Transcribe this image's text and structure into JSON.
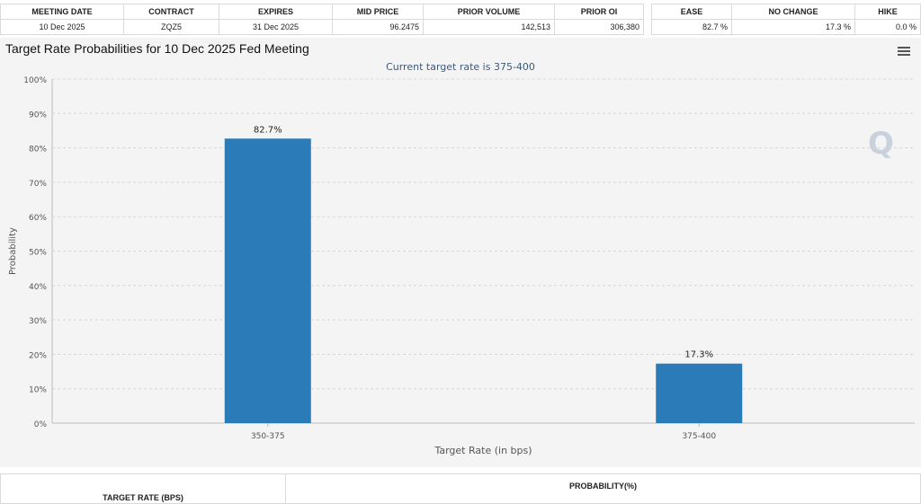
{
  "summary": {
    "headers": [
      "MEETING DATE",
      "CONTRACT",
      "EXPIRES",
      "MID PRICE",
      "PRIOR VOLUME",
      "PRIOR OI"
    ],
    "row": [
      "10 Dec 2025",
      "ZQZ5",
      "31 Dec 2025",
      "96.2475",
      "142,513",
      "306,380"
    ]
  },
  "outlook": {
    "headers": [
      "EASE",
      "NO CHANGE",
      "HIKE"
    ],
    "row": [
      "82.7 %",
      "17.3 %",
      "0.0 %"
    ]
  },
  "chart": {
    "title": "Target Rate Probabilities for 10 Dec 2025 Fed Meeting",
    "subtitle": "Current target rate is 375-400",
    "bar_color": "#2b7bb9"
  },
  "chart_data": {
    "type": "bar",
    "title": "Target Rate Probabilities for 10 Dec 2025 Fed Meeting",
    "subtitle": "Current target rate is 375-400",
    "categories": [
      "350-375",
      "375-400"
    ],
    "values": [
      82.7,
      17.3
    ],
    "data_labels": [
      "82.7%",
      "17.3%"
    ],
    "xlabel": "Target Rate (in bps)",
    "ylabel": "Probability",
    "ylim": [
      0,
      100
    ],
    "yticks": [
      "0%",
      "10%",
      "20%",
      "30%",
      "40%",
      "50%",
      "60%",
      "70%",
      "80%",
      "90%",
      "100%"
    ],
    "grid": true
  },
  "bottom_table": {
    "left_header": "TARGET RATE (BPS)",
    "right_header": "PROBABILITY(%)"
  }
}
